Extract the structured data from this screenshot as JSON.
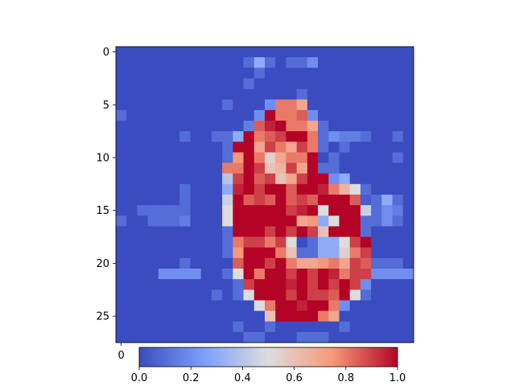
{
  "chart_data": {
    "type": "heatmap",
    "colormap": "coolwarm",
    "rows": 28,
    "cols": 28,
    "vmin": 0.0,
    "vmax": 1.0,
    "y_ticks": [
      "0",
      "5",
      "10",
      "15",
      "20",
      "25"
    ],
    "y_tick_values": [
      0,
      5,
      10,
      15,
      20,
      25
    ],
    "x_ticks": [
      "0"
    ],
    "x_tick_values": [
      0
    ],
    "colorbar": {
      "orientation": "horizontal",
      "ticks": [
        "0.0",
        "0.2",
        "0.4",
        "0.6",
        "0.8",
        "1.0"
      ],
      "tick_values": [
        0.0,
        0.2,
        0.4,
        0.6,
        0.8,
        1.0
      ]
    },
    "values": [
      [
        0,
        0,
        0,
        0,
        0,
        0,
        0,
        0,
        0,
        0,
        0,
        0,
        0,
        0,
        0,
        0,
        0,
        0,
        0,
        0,
        0,
        0,
        0,
        0,
        0,
        0,
        0,
        0
      ],
      [
        0,
        0,
        0,
        0,
        0,
        0,
        0,
        0,
        0,
        0,
        0,
        0,
        0.1,
        0.3,
        0.1,
        0,
        0.1,
        0.1,
        0.2,
        0,
        0,
        0,
        0,
        0,
        0,
        0,
        0,
        0
      ],
      [
        0,
        0,
        0,
        0,
        0,
        0,
        0,
        0,
        0,
        0,
        0,
        0,
        0,
        0.1,
        0,
        0,
        0,
        0,
        0,
        0,
        0,
        0,
        0,
        0,
        0,
        0,
        0,
        0
      ],
      [
        0,
        0,
        0,
        0,
        0,
        0,
        0,
        0,
        0,
        0,
        0,
        0,
        0.1,
        0,
        0,
        0,
        0,
        0,
        0,
        0,
        0,
        0,
        0,
        0,
        0,
        0,
        0,
        0
      ],
      [
        0,
        0,
        0,
        0,
        0,
        0,
        0,
        0,
        0,
        0,
        0,
        0,
        0,
        0,
        0,
        0,
        0,
        0.1,
        0,
        0,
        0,
        0,
        0,
        0,
        0,
        0,
        0,
        0
      ],
      [
        0,
        0,
        0,
        0,
        0,
        0,
        0,
        0,
        0,
        0,
        0.1,
        0,
        0,
        0,
        0.2,
        0.8,
        0.8,
        0.7,
        0,
        0,
        0,
        0,
        0,
        0,
        0,
        0,
        0,
        0
      ],
      [
        0.1,
        0,
        0,
        0,
        0,
        0,
        0,
        0,
        0,
        0,
        0,
        0,
        0,
        0.2,
        1,
        0.8,
        0.8,
        0.85,
        0.2,
        0,
        0,
        0,
        0,
        0,
        0,
        0,
        0,
        0
      ],
      [
        0,
        0,
        0,
        0,
        0,
        0,
        0,
        0,
        0,
        0,
        0,
        0,
        0.15,
        0.85,
        0.95,
        1,
        0.8,
        0.8,
        0.7,
        0.1,
        0,
        0,
        0,
        0,
        0,
        0,
        0,
        0
      ],
      [
        0,
        0,
        0,
        0,
        0,
        0,
        0.1,
        0,
        0,
        0.1,
        0.1,
        0.3,
        1,
        0.8,
        0.85,
        0.9,
        1,
        1,
        0.8,
        0.1,
        0.2,
        0.15,
        0.15,
        0.1,
        0,
        0,
        0.1,
        0
      ],
      [
        0,
        0,
        0,
        0,
        0,
        0,
        0,
        0,
        0,
        0,
        0.1,
        1,
        1,
        0.7,
        0.9,
        0.8,
        0.7,
        0.9,
        0.8,
        0.1,
        0,
        0.1,
        0,
        0,
        0,
        0,
        0,
        0
      ],
      [
        0,
        0,
        0,
        0,
        0,
        0,
        0,
        0,
        0,
        0,
        0.1,
        0.75,
        1,
        0.8,
        0.55,
        0.7,
        0.8,
        0.8,
        1,
        0,
        0.1,
        0,
        0,
        0,
        0,
        0,
        0.1,
        0
      ],
      [
        0,
        0,
        0,
        0,
        0,
        0,
        0,
        0,
        0,
        0,
        0.8,
        0.8,
        1,
        0.9,
        0.6,
        0.65,
        0.9,
        0.7,
        1,
        0.1,
        0.1,
        0,
        0,
        0,
        0,
        0,
        0,
        0
      ],
      [
        0,
        0,
        0,
        0,
        0,
        0,
        0,
        0,
        0,
        0,
        0.4,
        0.9,
        1,
        0.85,
        0.9,
        0.6,
        0.7,
        0.9,
        1,
        1,
        0.2,
        0.3,
        0,
        0,
        0,
        0,
        0,
        0
      ],
      [
        0,
        0,
        0,
        0,
        0,
        0,
        0.1,
        0,
        0,
        0,
        0.3,
        0.95,
        1,
        0.9,
        1,
        1,
        0.85,
        1,
        1,
        0.95,
        0.8,
        0.65,
        0.5,
        0.1,
        0,
        0,
        0,
        0
      ],
      [
        0,
        0,
        0,
        0,
        0,
        0,
        0.1,
        0,
        0,
        0,
        0.45,
        1,
        0.85,
        0.9,
        0.85,
        1,
        0.85,
        0.9,
        0.85,
        1,
        1,
        1,
        0.85,
        0.05,
        0.1,
        0.3,
        0.1,
        0
      ],
      [
        0,
        0,
        0.1,
        0.1,
        0.1,
        0.1,
        0.1,
        0,
        0,
        0,
        0.5,
        1,
        1,
        1,
        1,
        1,
        0.9,
        0.95,
        1,
        0.5,
        1,
        1,
        1,
        0.45,
        0.1,
        0.2,
        0.15,
        0
      ],
      [
        0.1,
        0,
        0,
        0.1,
        0.1,
        0.1,
        0.15,
        0,
        0,
        0,
        0.5,
        1,
        1,
        1,
        1,
        1,
        1,
        0.7,
        0.75,
        0.3,
        0.5,
        1,
        1,
        0.1,
        0.1,
        0.2,
        0.1,
        0
      ],
      [
        0,
        0,
        0,
        0,
        0,
        0,
        0,
        0,
        0,
        0,
        0.1,
        1,
        1,
        1,
        0.9,
        1,
        0.9,
        1,
        0.9,
        0.6,
        1,
        1,
        1,
        0.1,
        0,
        0,
        0,
        0
      ],
      [
        0,
        0,
        0,
        0,
        0,
        0,
        0,
        0,
        0,
        0,
        0.1,
        0.8,
        0.9,
        0.9,
        0.8,
        0.9,
        0.5,
        0,
        0.1,
        0.3,
        0.3,
        0.5,
        0.9,
        1,
        0,
        0,
        0,
        0
      ],
      [
        0,
        0,
        0,
        0,
        0,
        0,
        0,
        0,
        0,
        0,
        0.1,
        0.75,
        1,
        1,
        1,
        0.8,
        0.6,
        0.1,
        0.1,
        0.3,
        0.3,
        0.55,
        0.8,
        0.9,
        0,
        0,
        0,
        0
      ],
      [
        0,
        0,
        0,
        0,
        0,
        0,
        0.1,
        0,
        0,
        0,
        0,
        0.85,
        1,
        1,
        0.9,
        1,
        0.8,
        0.7,
        0.7,
        0.75,
        0.8,
        0.7,
        0.9,
        0.85,
        0.1,
        0.1,
        0.1,
        0
      ],
      [
        0,
        0,
        0,
        0,
        0.2,
        0.2,
        0.2,
        0.2,
        0,
        0,
        0.1,
        0.5,
        1,
        0.8,
        1,
        1,
        0.9,
        1,
        0.9,
        1,
        0.95,
        0.8,
        0.9,
        0.9,
        0.2,
        0.2,
        0.2,
        0.2
      ],
      [
        0,
        0,
        0,
        0,
        0,
        0,
        0,
        0,
        0,
        0,
        0,
        0.1,
        0.9,
        1,
        1,
        1,
        0.95,
        1,
        0.9,
        1,
        0.9,
        1,
        0.9,
        0.2,
        0,
        0,
        0,
        0
      ],
      [
        0,
        0,
        0,
        0,
        0,
        0,
        0,
        0,
        0,
        0.1,
        0,
        0.1,
        0.5,
        1,
        1,
        1,
        0.9,
        1,
        0.9,
        0.9,
        0.85,
        1,
        0.5,
        0.1,
        0,
        0,
        0,
        0
      ],
      [
        0,
        0,
        0,
        0,
        0,
        0,
        0,
        0,
        0,
        0,
        0,
        0,
        0,
        0.5,
        0.8,
        1,
        1,
        0.95,
        1,
        1,
        0.8,
        0.2,
        0,
        0,
        0,
        0,
        0,
        0
      ],
      [
        0,
        0,
        0,
        0,
        0,
        0,
        0,
        0,
        0,
        0,
        0,
        0,
        0,
        0,
        0.6,
        1,
        1,
        1,
        1,
        0.8,
        0.7,
        0,
        0,
        0,
        0,
        0,
        0,
        0
      ],
      [
        0,
        0,
        0,
        0,
        0,
        0,
        0,
        0,
        0,
        0,
        0,
        0.1,
        0,
        0,
        0.1,
        0,
        0,
        0,
        0,
        0,
        0,
        0.1,
        0,
        0,
        0,
        0,
        0,
        0
      ],
      [
        0,
        0,
        0,
        0,
        0,
        0,
        0,
        0,
        0,
        0,
        0,
        0,
        0.1,
        0.1,
        0,
        0,
        0,
        0.1,
        0.1,
        0.1,
        0,
        0,
        0,
        0,
        0,
        0,
        0,
        0
      ]
    ]
  }
}
